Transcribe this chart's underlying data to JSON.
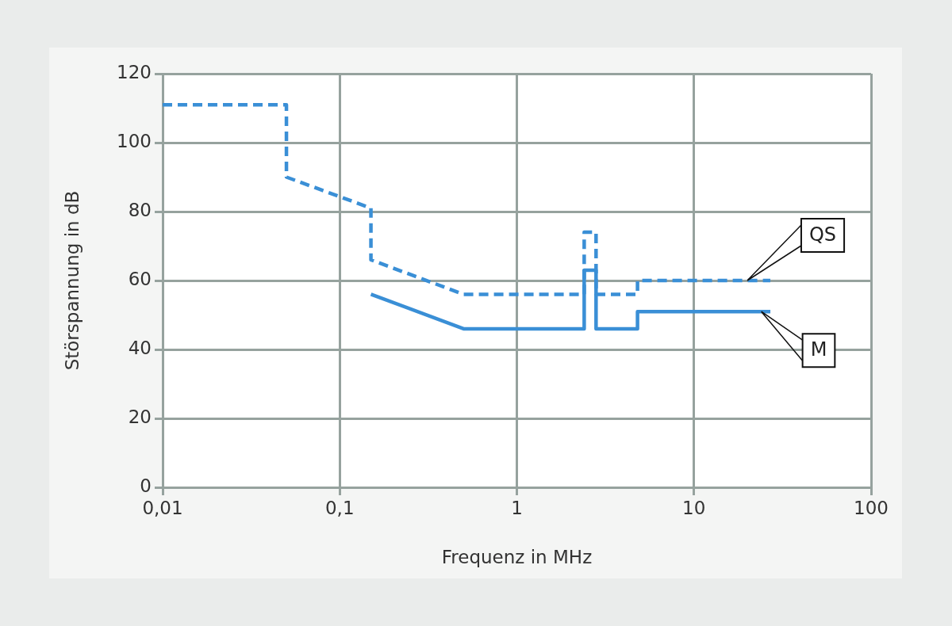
{
  "chart_data": {
    "type": "line",
    "xlabel": "Frequenz in MHz",
    "ylabel": "Störspannung in dB",
    "log": "x",
    "grid": true,
    "legend": false,
    "marker": "none",
    "xlim": [
      0.01,
      100
    ],
    "xticks": [
      {
        "value": 0.01,
        "label": "0,01"
      },
      {
        "value": 0.1,
        "label": "0,1"
      },
      1,
      10,
      100
    ],
    "ylim": [
      0,
      120
    ],
    "yticks": [
      0,
      20,
      40,
      60,
      80,
      100,
      120
    ],
    "series": [
      {
        "color": "#3a8fd6",
        "line_style": "dashed",
        "x": [
          0.01,
          0.05,
          0.05,
          0.15,
          0.15,
          0.5,
          2.4,
          2.4,
          2.8,
          2.8,
          4.8,
          4.8,
          27
        ],
        "values": [
          111,
          111,
          90,
          81,
          66,
          56,
          56,
          74,
          74,
          56,
          56,
          60,
          60
        ]
      },
      {
        "color": "#3a8fd6",
        "line_style": "solid",
        "x": [
          0.15,
          0.5,
          2.4,
          2.4,
          2.8,
          2.8,
          4.8,
          4.8,
          27
        ],
        "values": [
          56,
          46,
          46,
          63,
          63,
          46,
          46,
          51,
          51
        ]
      }
    ],
    "annotations": [
      {
        "text": "QS",
        "x": 20,
        "y": 60
      },
      {
        "text": "M",
        "x": 24,
        "y": 51
      }
    ]
  }
}
